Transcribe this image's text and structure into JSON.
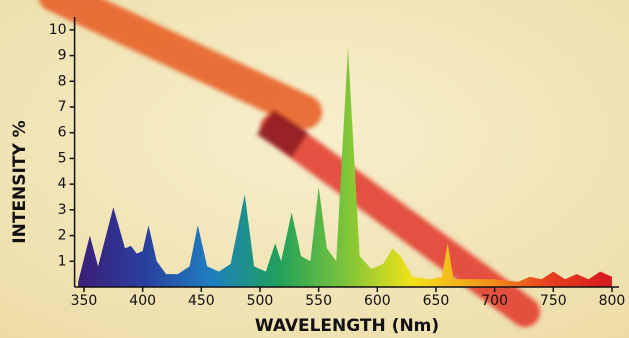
{
  "chart_data": {
    "type": "area",
    "x_label": "WAVELENGTH (Nm)",
    "y_label": "INTENSITY %",
    "x": [
      345,
      355,
      362,
      375,
      385,
      390,
      395,
      400,
      405,
      412,
      420,
      430,
      440,
      447,
      455,
      465,
      475,
      487,
      495,
      505,
      513,
      518,
      527,
      535,
      543,
      550,
      557,
      565,
      575,
      585,
      595,
      605,
      613,
      620,
      630,
      645,
      655,
      660,
      665,
      680,
      700,
      720,
      730,
      740,
      750,
      760,
      770,
      780,
      790,
      800
    ],
    "values": [
      0.2,
      2.0,
      0.8,
      3.1,
      1.5,
      1.6,
      1.3,
      1.4,
      2.4,
      1.0,
      0.5,
      0.5,
      0.8,
      2.4,
      0.8,
      0.6,
      0.9,
      3.6,
      0.8,
      0.6,
      1.7,
      1.0,
      2.9,
      1.2,
      1.0,
      3.9,
      1.5,
      1.0,
      9.3,
      1.2,
      0.7,
      0.9,
      1.5,
      1.2,
      0.4,
      0.3,
      0.4,
      1.7,
      0.3,
      0.3,
      0.3,
      0.2,
      0.4,
      0.3,
      0.6,
      0.3,
      0.5,
      0.3,
      0.6,
      0.4
    ],
    "gradient": [
      "#3b1f78",
      "#2a3f9e",
      "#1e7fc0",
      "#1fa05a",
      "#7cc43a",
      "#f2e21a",
      "#f5a01a",
      "#e8421e",
      "#d4181e"
    ],
    "xlim": [
      342,
      806
    ],
    "ylim": [
      0,
      10.5
    ],
    "xticks": [
      350,
      400,
      450,
      500,
      550,
      600,
      650,
      700,
      750,
      800
    ],
    "yticks": [
      1,
      2,
      3,
      4,
      5,
      6,
      7,
      8,
      9,
      10
    ]
  }
}
